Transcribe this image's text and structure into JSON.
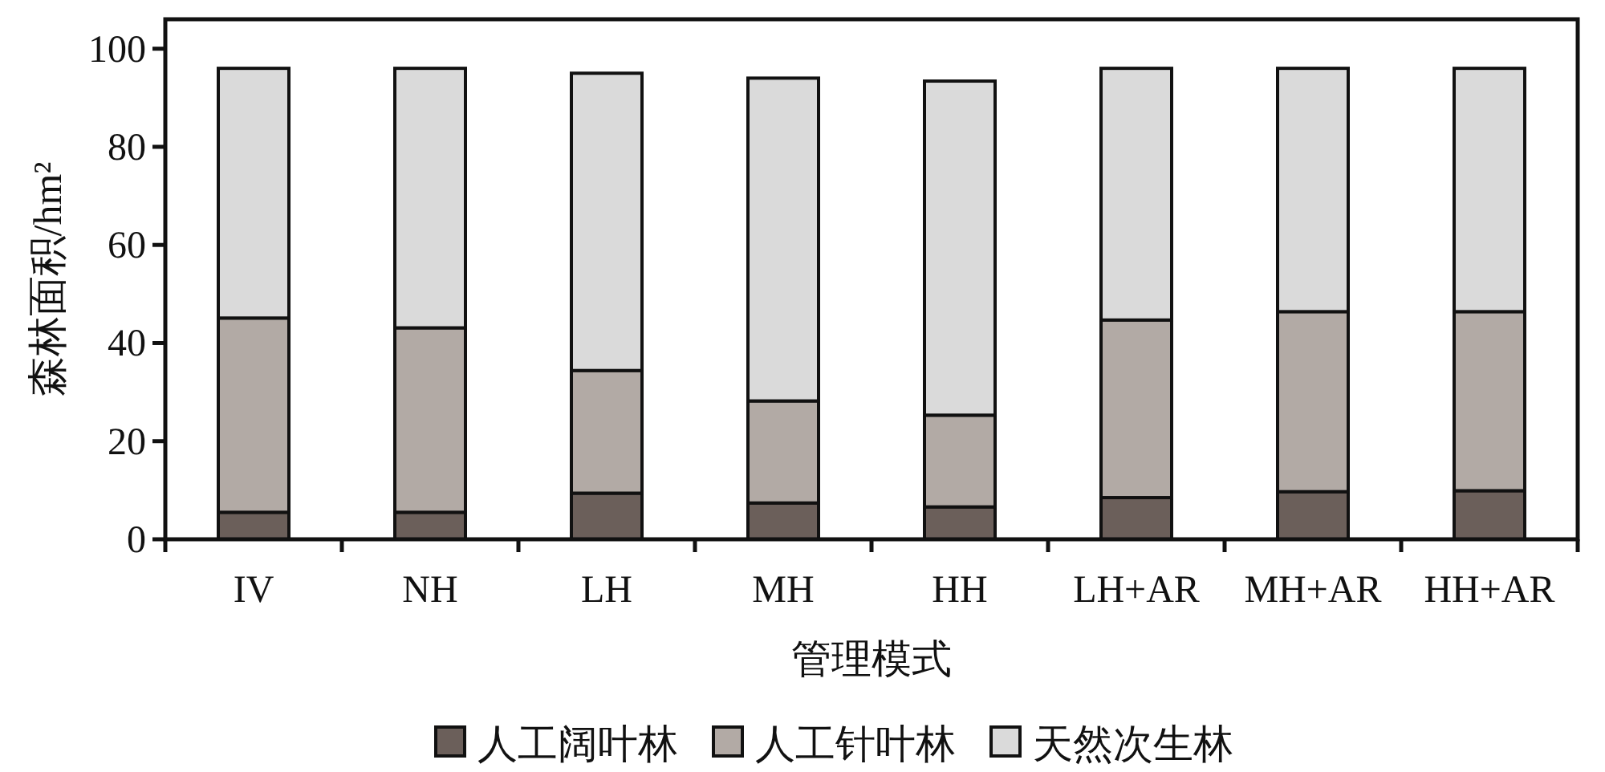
{
  "chart_data": {
    "type": "bar",
    "stacked": true,
    "xlabel": "管理模式",
    "ylabel": "森林面积/hm²",
    "categories": [
      "IV",
      "NH",
      "LH",
      "MH",
      "HH",
      "LH+AR",
      "MH+AR",
      "HH+AR"
    ],
    "series": [
      {
        "name": "人工阔叶林",
        "color": "#6b5f5a",
        "values": [
          5.5,
          5.5,
          9.4,
          7.4,
          6.6,
          8.5,
          9.7,
          9.9
        ]
      },
      {
        "name": "人工针叶林",
        "color": "#b2aaa5",
        "values": [
          39.6,
          37.6,
          25.0,
          20.8,
          18.7,
          36.2,
          36.7,
          36.5
        ]
      },
      {
        "name": "天然次生林",
        "color": "#dadada",
        "values": [
          50.9,
          52.9,
          60.6,
          65.8,
          68.1,
          51.3,
          49.6,
          49.6
        ]
      }
    ],
    "ylim": [
      0,
      106
    ],
    "yticks": [
      0,
      20,
      40,
      60,
      80,
      100
    ],
    "legend": "bottom"
  }
}
